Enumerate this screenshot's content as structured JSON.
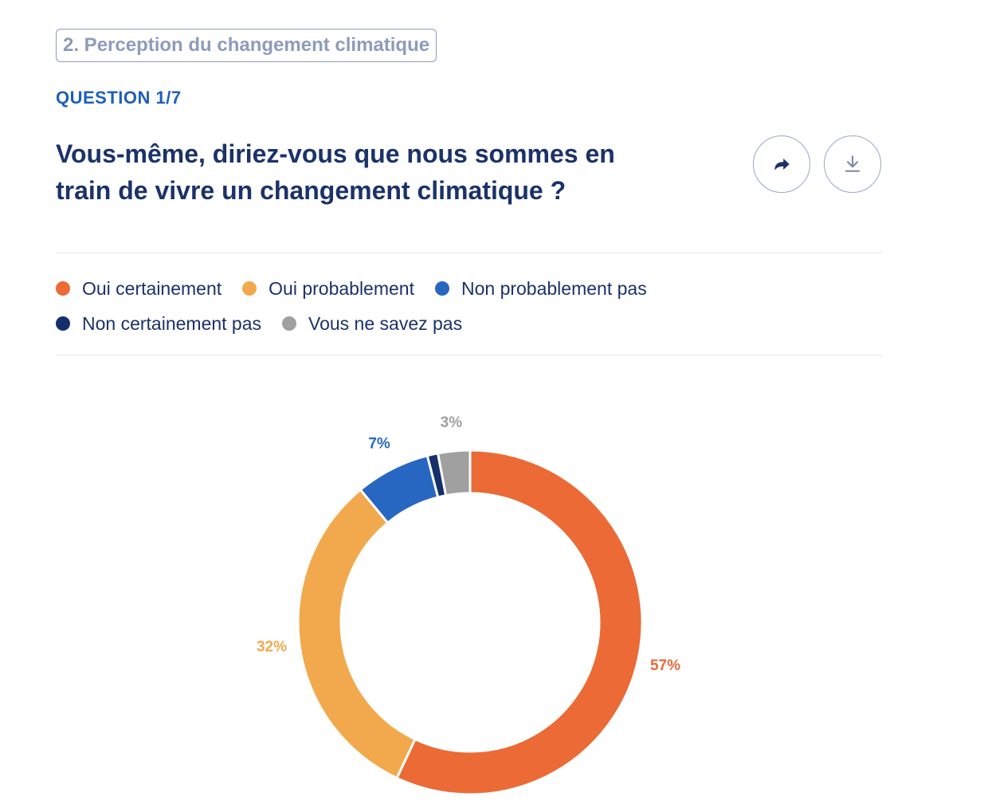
{
  "section": {
    "title": "2. Perception du changement climatique"
  },
  "question": {
    "counter": "QUESTION 1/7",
    "title": "Vous-même, diriez-vous que nous sommes en train de vivre un changement climatique ?"
  },
  "actions": {
    "share_icon": "share-arrow-icon",
    "download_icon": "download-icon"
  },
  "legend": {
    "items": [
      {
        "label": "Oui certainement",
        "color": "#eb6a35"
      },
      {
        "label": "Oui probablement",
        "color": "#f2a94d"
      },
      {
        "label": "Non probablement pas",
        "color": "#2767c2"
      },
      {
        "label": "Non certainement pas",
        "color": "#152f6b"
      },
      {
        "label": "Vous ne savez pas",
        "color": "#a0a0a0"
      }
    ]
  },
  "chart_data": {
    "type": "pie",
    "variant": "donut",
    "title": "",
    "categories": [
      "Oui certainement",
      "Oui probablement",
      "Non probablement pas",
      "Non certainement pas",
      "Vous ne savez pas"
    ],
    "values": [
      57,
      32,
      7,
      1,
      3
    ],
    "labels": [
      "57%",
      "32%",
      "7%",
      "",
      "3%"
    ],
    "colors": [
      "#eb6a35",
      "#f2a94d",
      "#2767c2",
      "#152f6b",
      "#a0a0a0"
    ],
    "label_colors": [
      "#eb6a35",
      "#f2a94d",
      "#2767c2",
      "#152f6b",
      "#a0a0a0"
    ],
    "legend_position": "top"
  }
}
